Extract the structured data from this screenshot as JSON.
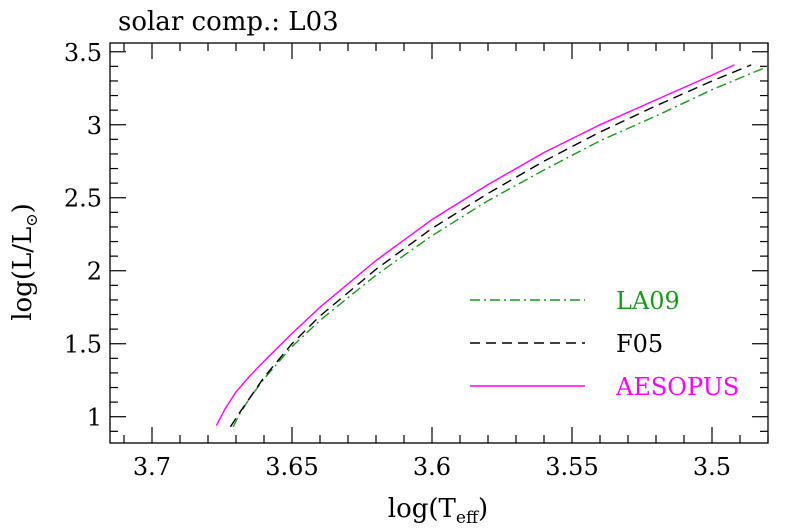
{
  "chart_data": {
    "type": "line",
    "title": "solar comp.: L03",
    "xlabel_prefix": "log(T",
    "xlabel_sub": "eff",
    "xlabel_suffix": ")",
    "ylabel_prefix": "log(L/L",
    "ylabel_sub": "⊙",
    "ylabel_suffix": ")",
    "xlim": [
      3.715,
      3.48
    ],
    "ylim": [
      0.82,
      3.56
    ],
    "x_ticks": [
      3.7,
      3.65,
      3.6,
      3.55,
      3.5
    ],
    "x_tick_labels": [
      "3.7",
      "3.65",
      "3.6",
      "3.55",
      "3.5"
    ],
    "y_ticks": [
      1,
      1.5,
      2,
      2.5,
      3,
      3.5
    ],
    "y_tick_labels": [
      "1",
      "1.5",
      "2",
      "2.5",
      "3",
      "3.5"
    ],
    "legend_placement": "lower-right",
    "series": [
      {
        "name": "LA09",
        "color": "#1a9a1a",
        "dash": "dash-dot",
        "x": [
          3.671,
          3.669,
          3.665,
          3.66,
          3.65,
          3.64,
          3.62,
          3.6,
          3.58,
          3.56,
          3.54,
          3.52,
          3.5,
          3.48
        ],
        "y": [
          0.93,
          1.01,
          1.13,
          1.26,
          1.48,
          1.66,
          1.97,
          2.24,
          2.48,
          2.69,
          2.89,
          3.06,
          3.24,
          3.4
        ]
      },
      {
        "name": "F05",
        "color": "#000000",
        "dash": "dashed",
        "x": [
          3.672,
          3.669,
          3.665,
          3.66,
          3.65,
          3.64,
          3.62,
          3.6,
          3.58,
          3.56,
          3.54,
          3.52,
          3.5,
          3.486
        ],
        "y": [
          0.93,
          1.02,
          1.13,
          1.27,
          1.5,
          1.69,
          2.01,
          2.29,
          2.53,
          2.75,
          2.95,
          3.13,
          3.3,
          3.41
        ]
      },
      {
        "name": "AESOPUS",
        "color": "#ff00ff",
        "dash": "solid",
        "x": [
          3.677,
          3.674,
          3.67,
          3.665,
          3.66,
          3.65,
          3.64,
          3.62,
          3.6,
          3.58,
          3.56,
          3.54,
          3.52,
          3.5,
          3.492
        ],
        "y": [
          0.94,
          1.05,
          1.17,
          1.28,
          1.38,
          1.57,
          1.75,
          2.07,
          2.35,
          2.59,
          2.81,
          3.0,
          3.17,
          3.34,
          3.41
        ]
      }
    ]
  }
}
